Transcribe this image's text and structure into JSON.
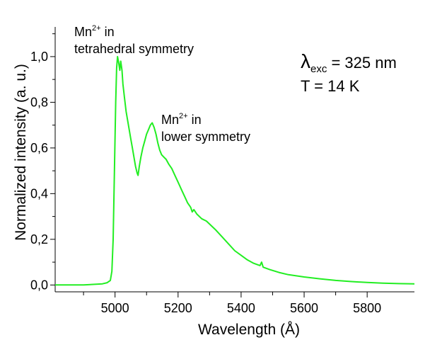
{
  "chart_data": {
    "type": "line",
    "xlabel": "Wavelength (Å)",
    "ylabel": "Normalized intensity (a. u.)",
    "xlim": [
      4810,
      5950
    ],
    "ylim": [
      -0.03,
      1.13
    ],
    "x_ticks": [
      5000,
      5200,
      5400,
      5600,
      5800
    ],
    "y_ticks": [
      "0,0",
      "0,2",
      "0,4",
      "0,6",
      "0,8",
      "1,0"
    ],
    "y_tick_values": [
      0.0,
      0.2,
      0.4,
      0.6,
      0.8,
      1.0
    ],
    "color": "#22ee22",
    "annotations": [
      {
        "lines": [
          "Mn2+ in",
          "tetrahedral symmetry"
        ],
        "x": 5005,
        "y": 1.0
      },
      {
        "lines": [
          "Mn2+ in",
          "lower symmetry"
        ],
        "x": 5115,
        "y": 0.7
      }
    ],
    "parameters": [
      "λexc = 325 nm",
      "T = 14 K"
    ],
    "series": [
      {
        "values": [
          [
            4810,
            0.0
          ],
          [
            4900,
            0.0
          ],
          [
            4960,
            0.005
          ],
          [
            4975,
            0.01
          ],
          [
            4985,
            0.02
          ],
          [
            4990,
            0.06
          ],
          [
            4994,
            0.2
          ],
          [
            4998,
            0.5
          ],
          [
            5002,
            0.8
          ],
          [
            5005,
            0.95
          ],
          [
            5008,
            1.0
          ],
          [
            5012,
            0.97
          ],
          [
            5015,
            0.94
          ],
          [
            5018,
            0.98
          ],
          [
            5022,
            0.94
          ],
          [
            5025,
            0.88
          ],
          [
            5030,
            0.82
          ],
          [
            5035,
            0.76
          ],
          [
            5040,
            0.72
          ],
          [
            5045,
            0.68
          ],
          [
            5050,
            0.64
          ],
          [
            5055,
            0.6
          ],
          [
            5060,
            0.56
          ],
          [
            5065,
            0.52
          ],
          [
            5070,
            0.49
          ],
          [
            5073,
            0.48
          ],
          [
            5077,
            0.52
          ],
          [
            5082,
            0.56
          ],
          [
            5088,
            0.6
          ],
          [
            5094,
            0.63
          ],
          [
            5100,
            0.66
          ],
          [
            5106,
            0.68
          ],
          [
            5112,
            0.7
          ],
          [
            5118,
            0.71
          ],
          [
            5124,
            0.69
          ],
          [
            5130,
            0.66
          ],
          [
            5136,
            0.62
          ],
          [
            5142,
            0.59
          ],
          [
            5148,
            0.57
          ],
          [
            5155,
            0.56
          ],
          [
            5162,
            0.55
          ],
          [
            5170,
            0.53
          ],
          [
            5180,
            0.51
          ],
          [
            5190,
            0.48
          ],
          [
            5200,
            0.45
          ],
          [
            5210,
            0.42
          ],
          [
            5220,
            0.39
          ],
          [
            5230,
            0.36
          ],
          [
            5240,
            0.34
          ],
          [
            5245,
            0.32
          ],
          [
            5250,
            0.33
          ],
          [
            5260,
            0.31
          ],
          [
            5275,
            0.29
          ],
          [
            5290,
            0.28
          ],
          [
            5305,
            0.26
          ],
          [
            5320,
            0.24
          ],
          [
            5340,
            0.21
          ],
          [
            5360,
            0.18
          ],
          [
            5380,
            0.15
          ],
          [
            5400,
            0.13
          ],
          [
            5420,
            0.11
          ],
          [
            5440,
            0.095
          ],
          [
            5460,
            0.085
          ],
          [
            5465,
            0.1
          ],
          [
            5470,
            0.078
          ],
          [
            5490,
            0.068
          ],
          [
            5520,
            0.055
          ],
          [
            5550,
            0.045
          ],
          [
            5600,
            0.035
          ],
          [
            5650,
            0.027
          ],
          [
            5700,
            0.02
          ],
          [
            5750,
            0.015
          ],
          [
            5800,
            0.011
          ],
          [
            5850,
            0.008
          ],
          [
            5900,
            0.006
          ],
          [
            5950,
            0.005
          ]
        ]
      }
    ]
  }
}
